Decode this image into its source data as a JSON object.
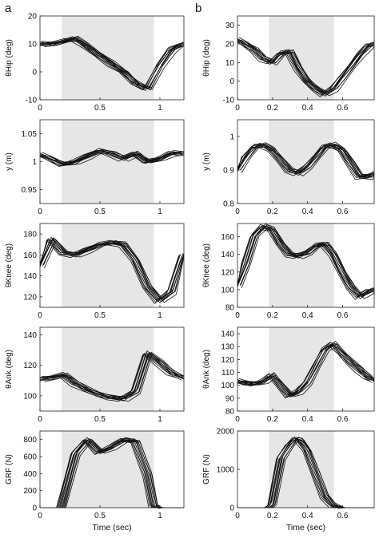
{
  "panel_labels": [
    "a",
    "b"
  ],
  "colors": {
    "shade": "#e6e6e6",
    "line": "#111111",
    "axis": "#222222"
  },
  "chart_data": [
    {
      "type": "line",
      "panel": "a",
      "row": 0,
      "ylabel": "θHip (deg)",
      "xlim": [
        0,
        1.2
      ],
      "ylim": [
        -10,
        20
      ],
      "xticks": [
        0,
        0.5,
        1
      ],
      "xticklabels": [
        "0",
        "0.5",
        "1"
      ],
      "yticks": [
        -10,
        0,
        10,
        20
      ],
      "yticklabels": [
        "-10",
        "0",
        "10",
        "20"
      ],
      "shaded_x": [
        0.18,
        0.95
      ],
      "x": [
        0,
        0.1,
        0.2,
        0.3,
        0.4,
        0.5,
        0.6,
        0.7,
        0.8,
        0.9,
        1.0,
        1.1,
        1.2
      ],
      "series": [
        {
          "values": [
            10,
            10,
            11,
            12,
            9,
            6,
            3,
            0,
            -4,
            -6,
            2,
            8,
            10
          ]
        }
      ]
    },
    {
      "type": "line",
      "panel": "a",
      "row": 1,
      "ylabel": "y (m)",
      "xlim": [
        0,
        1.2
      ],
      "ylim": [
        0.925,
        1.075
      ],
      "xticks": [
        0,
        0.5,
        1
      ],
      "xticklabels": [
        "0",
        "0.5",
        "1"
      ],
      "yticks": [
        0.95,
        1,
        1.05
      ],
      "yticklabels": [
        "0.95",
        "1",
        "1.05"
      ],
      "shaded_x": [
        0.18,
        0.95
      ],
      "x": [
        0,
        0.1,
        0.2,
        0.3,
        0.4,
        0.5,
        0.6,
        0.7,
        0.8,
        0.9,
        1.0,
        1.1,
        1.2
      ],
      "series": [
        {
          "values": [
            1.012,
            1.005,
            0.995,
            1.0,
            1.01,
            1.02,
            1.015,
            1.005,
            1.015,
            1.0,
            1.005,
            1.015,
            1.015
          ]
        }
      ]
    },
    {
      "type": "line",
      "panel": "a",
      "row": 2,
      "ylabel": "θKnee (deg)",
      "xlim": [
        0,
        1.2
      ],
      "ylim": [
        110,
        190
      ],
      "xticks": [
        0,
        0.5,
        1
      ],
      "xticklabels": [
        "0",
        "0.5",
        "1"
      ],
      "yticks": [
        120,
        140,
        160,
        180
      ],
      "yticklabels": [
        "120",
        "140",
        "160",
        "180"
      ],
      "shaded_x": [
        0.18,
        0.95
      ],
      "x": [
        0,
        0.1,
        0.2,
        0.3,
        0.4,
        0.5,
        0.6,
        0.7,
        0.8,
        0.9,
        1.0,
        1.1,
        1.2
      ],
      "series": [
        {
          "values": [
            150,
            175,
            162,
            160,
            165,
            170,
            172,
            170,
            155,
            130,
            116,
            125,
            160
          ]
        }
      ]
    },
    {
      "type": "line",
      "panel": "a",
      "row": 3,
      "ylabel": "θAnk (deg)",
      "xlim": [
        0,
        1.2
      ],
      "ylim": [
        90,
        145
      ],
      "xticks": [
        0,
        0.5,
        1
      ],
      "xticklabels": [
        "0",
        "0.5",
        "1"
      ],
      "yticks": [
        100,
        120,
        140
      ],
      "yticklabels": [
        "100",
        "120",
        "140"
      ],
      "shaded_x": [
        0.18,
        0.95
      ],
      "x": [
        0,
        0.1,
        0.2,
        0.3,
        0.4,
        0.5,
        0.6,
        0.7,
        0.8,
        0.9,
        1.0,
        1.1,
        1.2
      ],
      "series": [
        {
          "values": [
            111,
            112,
            114,
            108,
            104,
            101,
            99,
            98,
            103,
            128,
            122,
            115,
            112
          ]
        }
      ]
    },
    {
      "type": "line",
      "panel": "a",
      "row": 4,
      "ylabel": "GRF (N)",
      "xlabel": "Time (sec)",
      "xlim": [
        0,
        1.2
      ],
      "ylim": [
        0,
        900
      ],
      "xticks": [
        0,
        0.5,
        1
      ],
      "xticklabels": [
        "0",
        "0.5",
        "1"
      ],
      "yticks": [
        0,
        200,
        400,
        600,
        800
      ],
      "yticklabels": [
        "0",
        "200",
        "400",
        "600",
        "800"
      ],
      "shaded_x": [
        0.18,
        0.95
      ],
      "x": [
        0,
        0.1,
        0.18,
        0.25,
        0.3,
        0.4,
        0.5,
        0.6,
        0.7,
        0.8,
        0.9,
        0.95,
        1.0,
        1.1,
        1.2
      ],
      "series": [
        {
          "values": [
            0,
            0,
            0,
            380,
            640,
            800,
            650,
            710,
            800,
            780,
            400,
            20,
            0,
            0,
            0
          ]
        }
      ]
    },
    {
      "type": "line",
      "panel": "b",
      "row": 0,
      "ylabel": "θHip (deg)",
      "xlim": [
        0,
        0.78
      ],
      "ylim": [
        -10,
        35
      ],
      "xticks": [
        0,
        0.2,
        0.4,
        0.6
      ],
      "xticklabels": [
        "0",
        "0.2",
        "0.4",
        "0.6"
      ],
      "yticks": [
        -10,
        0,
        10,
        20,
        30
      ],
      "yticklabels": [
        "-10",
        "0",
        "10",
        "20",
        "30"
      ],
      "shaded_x": [
        0.18,
        0.55
      ],
      "x": [
        0,
        0.05,
        0.1,
        0.15,
        0.2,
        0.25,
        0.3,
        0.35,
        0.4,
        0.45,
        0.5,
        0.55,
        0.6,
        0.65,
        0.7,
        0.75,
        0.78
      ],
      "series": [
        {
          "values": [
            22,
            20,
            17,
            12,
            10,
            15,
            16,
            7,
            0,
            -4,
            -7,
            -4,
            2,
            8,
            14,
            19,
            20
          ]
        }
      ]
    },
    {
      "type": "line",
      "panel": "b",
      "row": 1,
      "ylabel": "y (m)",
      "xlim": [
        0,
        0.78
      ],
      "ylim": [
        0.8,
        1.05
      ],
      "xticks": [
        0,
        0.2,
        0.4,
        0.6
      ],
      "xticklabels": [
        "0",
        "0.2",
        "0.4",
        "0.6"
      ],
      "yticks": [
        0.8,
        0.9,
        1
      ],
      "yticklabels": [
        "0.8",
        "0.9",
        "1"
      ],
      "shaded_x": [
        0.18,
        0.55
      ],
      "x": [
        0,
        0.05,
        0.1,
        0.15,
        0.2,
        0.25,
        0.3,
        0.35,
        0.4,
        0.45,
        0.5,
        0.55,
        0.6,
        0.65,
        0.7,
        0.75,
        0.78
      ],
      "series": [
        {
          "values": [
            0.9,
            0.94,
            0.97,
            0.975,
            0.96,
            0.93,
            0.9,
            0.89,
            0.91,
            0.94,
            0.97,
            0.975,
            0.96,
            0.92,
            0.88,
            0.88,
            0.89
          ]
        }
      ]
    },
    {
      "type": "line",
      "panel": "b",
      "row": 2,
      "ylabel": "θKnee (deg)",
      "xlim": [
        0,
        0.78
      ],
      "ylim": [
        80,
        175
      ],
      "xticks": [
        0,
        0.2,
        0.4,
        0.6
      ],
      "xticklabels": [
        "0",
        "0.2",
        "0.4",
        "0.6"
      ],
      "yticks": [
        80,
        100,
        120,
        140,
        160
      ],
      "yticklabels": [
        "80",
        "100",
        "120",
        "140",
        "160"
      ],
      "shaded_x": [
        0.18,
        0.55
      ],
      "x": [
        0,
        0.05,
        0.1,
        0.15,
        0.2,
        0.25,
        0.3,
        0.35,
        0.4,
        0.45,
        0.5,
        0.55,
        0.6,
        0.65,
        0.7,
        0.75,
        0.78
      ],
      "series": [
        {
          "values": [
            105,
            130,
            162,
            172,
            168,
            152,
            140,
            138,
            142,
            150,
            152,
            140,
            120,
            103,
            92,
            98,
            100
          ]
        }
      ]
    },
    {
      "type": "line",
      "panel": "b",
      "row": 3,
      "ylabel": "θAnk (deg)",
      "xlim": [
        0,
        0.78
      ],
      "ylim": [
        80,
        145
      ],
      "xticks": [
        0,
        0.2,
        0.4,
        0.6
      ],
      "xticklabels": [
        "0",
        "0.2",
        "0.4",
        "0.6"
      ],
      "yticks": [
        80,
        90,
        100,
        110,
        120,
        130,
        140
      ],
      "yticklabels": [
        "80",
        "90",
        "100",
        "110",
        "120",
        "130",
        "140"
      ],
      "shaded_x": [
        0.18,
        0.55
      ],
      "x": [
        0,
        0.05,
        0.1,
        0.15,
        0.2,
        0.25,
        0.3,
        0.35,
        0.4,
        0.45,
        0.5,
        0.55,
        0.6,
        0.65,
        0.7,
        0.75,
        0.78
      ],
      "series": [
        {
          "values": [
            103,
            102,
            101,
            103,
            108,
            100,
            92,
            95,
            102,
            115,
            128,
            132,
            125,
            118,
            112,
            106,
            104
          ]
        }
      ]
    },
    {
      "type": "line",
      "panel": "b",
      "row": 4,
      "ylabel": "GRF (N)",
      "xlabel": "Time (sec)",
      "xlim": [
        0,
        0.78
      ],
      "ylim": [
        0,
        2000
      ],
      "xticks": [
        0,
        0.2,
        0.4,
        0.6
      ],
      "xticklabels": [
        "0",
        "0.2",
        "0.4",
        "0.6"
      ],
      "yticks": [
        0,
        1000,
        2000
      ],
      "yticklabels": [
        "0",
        "1000",
        "2000"
      ],
      "shaded_x": [
        0.18,
        0.55
      ],
      "x": [
        0,
        0.18,
        0.2,
        0.22,
        0.25,
        0.3,
        0.33,
        0.36,
        0.4,
        0.45,
        0.5,
        0.55,
        0.6,
        0.78
      ],
      "series": [
        {
          "values": [
            0,
            0,
            100,
            600,
            1300,
            1650,
            1800,
            1750,
            1500,
            900,
            300,
            50,
            0,
            0
          ]
        }
      ]
    }
  ]
}
